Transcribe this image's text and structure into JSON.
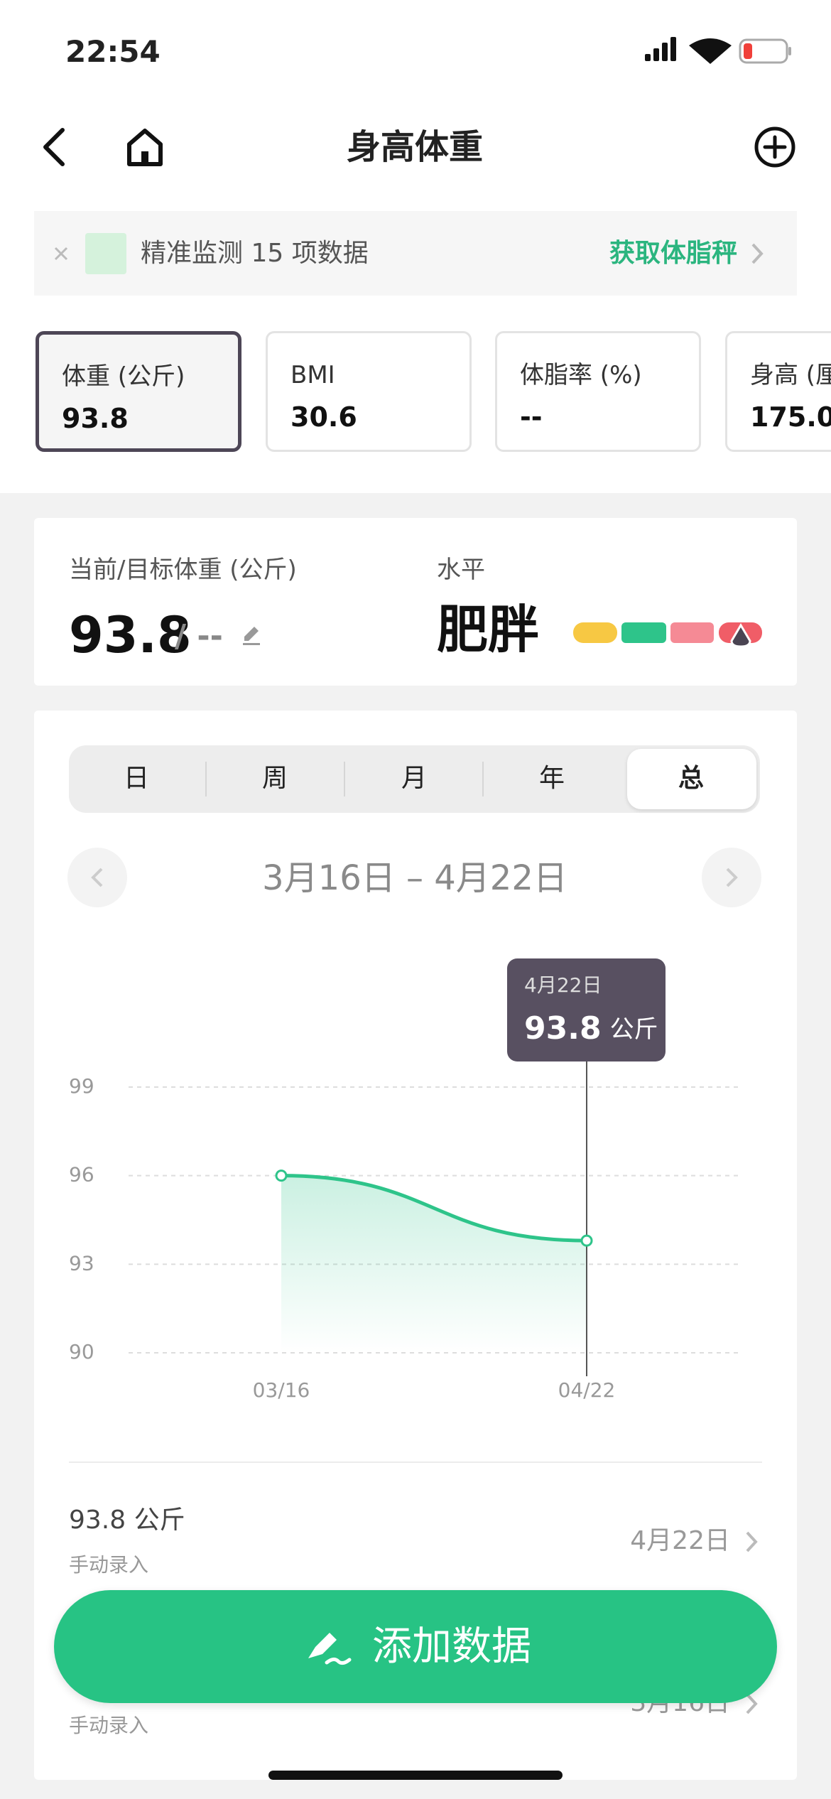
{
  "status_bar": {
    "time": "22:54"
  },
  "nav": {
    "title": "身高体重"
  },
  "banner": {
    "text": "精准监测 15 项数据",
    "link": "获取体脂秤"
  },
  "metric_cards": [
    {
      "label": "体重 (公斤)",
      "value": "93.8"
    },
    {
      "label": "BMI",
      "value": "30.6"
    },
    {
      "label": "体脂率 (%)",
      "value": "--"
    },
    {
      "label": "身高 (厘",
      "value": "175.0"
    }
  ],
  "summary": {
    "label": "当前/目标体重 (公斤)",
    "current": "93.8",
    "target": "/ --",
    "level_label": "水平",
    "level": "肥胖"
  },
  "period_tabs": [
    "日",
    "周",
    "月",
    "年",
    "总"
  ],
  "date_range": "3月16日 – 4月22日",
  "chart_data": {
    "type": "line",
    "categories": [
      "03/16",
      "04/22"
    ],
    "values": [
      96,
      93.8
    ],
    "color": "#2ec48a",
    "ylim": [
      90,
      99
    ],
    "yticks": [
      90,
      93,
      96,
      99
    ],
    "grid": true,
    "tooltip": {
      "label": "4月22日",
      "unit": "公斤"
    }
  },
  "records": [
    {
      "value": "93.8 公斤",
      "source": "手动录入",
      "date": "4月22日"
    },
    {
      "source": "手动录入",
      "date": "3月16日"
    }
  ],
  "add_button": "添加数据"
}
